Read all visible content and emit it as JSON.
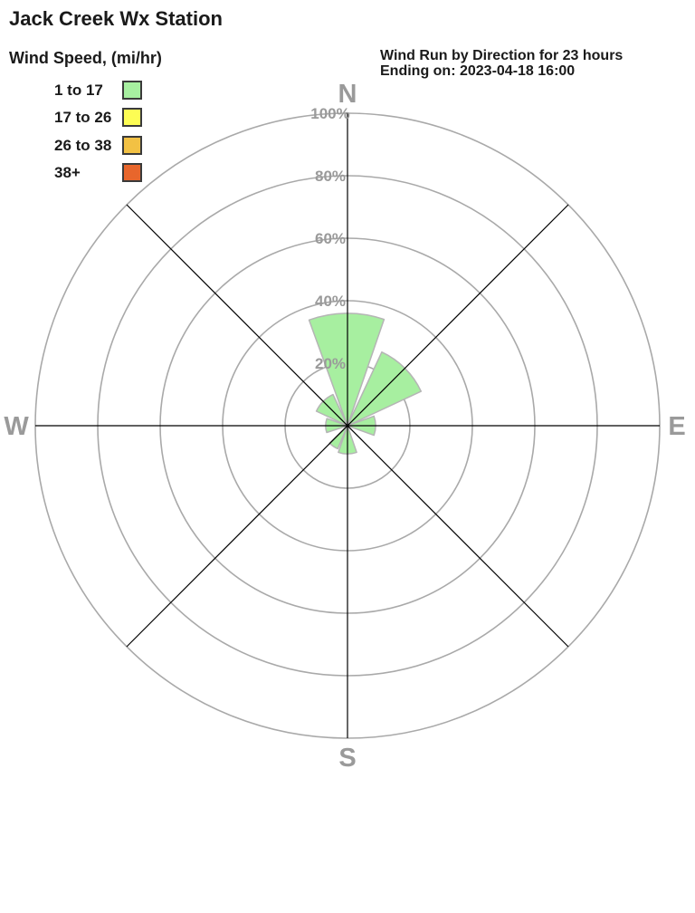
{
  "header": {
    "title": "Jack Creek Wx Station",
    "subtitle_line1": "Wind Run by Direction for 23 hours",
    "subtitle_line2": "Ending on: 2023-04-18 16:00"
  },
  "legend": {
    "title": "Wind Speed, (mi/hr)"
  },
  "chart_data": {
    "type": "windrose",
    "title": "Wind Run by Direction for 23 hours",
    "subtitle": "Ending on: 2023-04-18 16:00",
    "units": "percent",
    "directions": [
      "N",
      "NE",
      "E",
      "SE",
      "S",
      "SW",
      "W",
      "NW"
    ],
    "speed_bins": [
      {
        "label": "1 to 17",
        "color": "#a7efa0",
        "values": [
          36,
          26,
          9,
          0,
          9,
          8,
          7,
          11
        ]
      },
      {
        "label": "17 to 26",
        "color": "#fdfd54",
        "values": [
          0,
          0,
          0,
          0,
          0,
          0,
          0,
          0
        ]
      },
      {
        "label": "26 to 38",
        "color": "#f2c144",
        "values": [
          0,
          0,
          0,
          0,
          0,
          0,
          0,
          0
        ]
      },
      {
        "label": "38+",
        "color": "#e8662c",
        "values": [
          0,
          0,
          0,
          0,
          0,
          0,
          0,
          0
        ]
      }
    ],
    "ring_ticks_pct": [
      20,
      40,
      60,
      80,
      100
    ],
    "ring_tick_labels": [
      "20%",
      "40%",
      "60%",
      "80%",
      "100%"
    ],
    "compass_labels": [
      "N",
      "E",
      "S",
      "W"
    ],
    "rlim": [
      0,
      100
    ],
    "grid_on": true,
    "legend_position": "top-left",
    "petal_drawn_spans_deg": {
      "N": [
        -20,
        19
      ],
      "NE": [
        25,
        65
      ],
      "E": [
        70,
        110
      ],
      "SE": [
        113,
        157
      ],
      "S": [
        161,
        199
      ],
      "SW": [
        203,
        226
      ],
      "W": [
        252,
        289
      ],
      "NW": [
        295,
        335
      ]
    },
    "colors": {
      "grid": "#a9a9a9",
      "axis": "#000000",
      "labels": "#9a9a9a",
      "petal_outline": "#b5b5b5"
    }
  }
}
